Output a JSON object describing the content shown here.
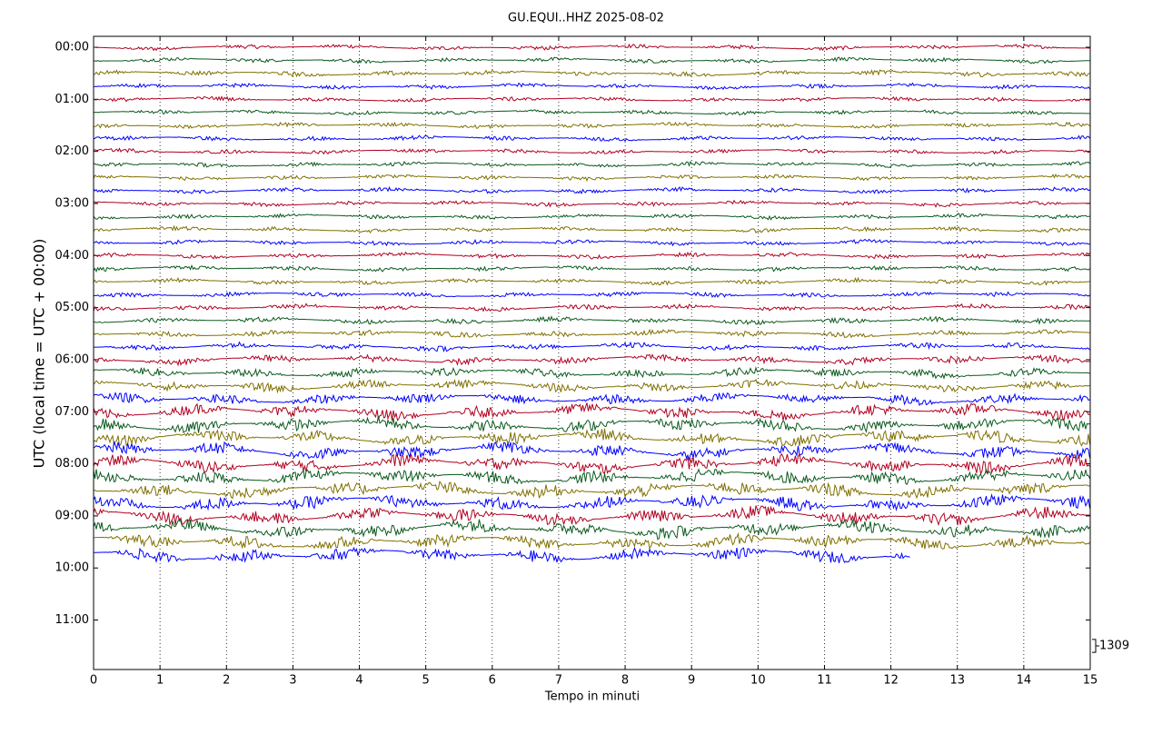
{
  "chart_data": {
    "type": "helicorder",
    "title": "GU.EQUI..HHZ 2025-08-02",
    "xlabel": "Tempo in minuti",
    "ylabel": "UTC (local time = UTC + 00:00)",
    "xlim": [
      0,
      15
    ],
    "xticks": [
      0,
      1,
      2,
      3,
      4,
      5,
      6,
      7,
      8,
      9,
      10,
      11,
      12,
      13,
      14,
      15
    ],
    "ylim": [
      11.95,
      -0.21
    ],
    "yticks": [
      {
        "value": 0,
        "label": "00:00"
      },
      {
        "value": 1,
        "label": "01:00"
      },
      {
        "value": 2,
        "label": "02:00"
      },
      {
        "value": 3,
        "label": "03:00"
      },
      {
        "value": 4,
        "label": "04:00"
      },
      {
        "value": 5,
        "label": "05:00"
      },
      {
        "value": 6,
        "label": "06:00"
      },
      {
        "value": 7,
        "label": "07:00"
      },
      {
        "value": 8,
        "label": "08:00"
      },
      {
        "value": 9,
        "label": "09:00"
      },
      {
        "value": 10,
        "label": "10:00"
      },
      {
        "value": 11,
        "label": "11:00"
      }
    ],
    "grid": true,
    "colors": [
      "#b00020",
      "#0b5a1e",
      "#807000",
      "#0000ff"
    ],
    "trace_hours": [
      0,
      0.25,
      0.5,
      0.75,
      1,
      1.25,
      1.5,
      1.75,
      2,
      2.25,
      2.5,
      2.75,
      3,
      3.25,
      3.5,
      3.75,
      4,
      4.25,
      4.5,
      4.75,
      5,
      5.25,
      5.5,
      5.75,
      6,
      6.25,
      6.5,
      6.75,
      7,
      7.25,
      7.5,
      7.75,
      8,
      8.25,
      8.5,
      8.75,
      9,
      9.25,
      9.5,
      9.75
    ],
    "amplitudes": [
      250,
      250,
      300,
      260,
      240,
      240,
      250,
      260,
      250,
      250,
      240,
      250,
      250,
      250,
      260,
      260,
      260,
      260,
      260,
      280,
      300,
      320,
      340,
      360,
      450,
      500,
      550,
      600,
      700,
      750,
      750,
      750,
      800,
      800,
      800,
      800,
      800,
      850,
      800,
      750
    ],
    "trace_ends": [
      15,
      15,
      15,
      15,
      15,
      15,
      15,
      15,
      15,
      15,
      15,
      15,
      15,
      15,
      15,
      15,
      15,
      15,
      15,
      15,
      15,
      15,
      15,
      15,
      15,
      15,
      15,
      15,
      15,
      15,
      15,
      15,
      15,
      15,
      15,
      15,
      15,
      15,
      15,
      12.3
    ],
    "scale": {
      "value": 1309,
      "label": "1309"
    }
  }
}
